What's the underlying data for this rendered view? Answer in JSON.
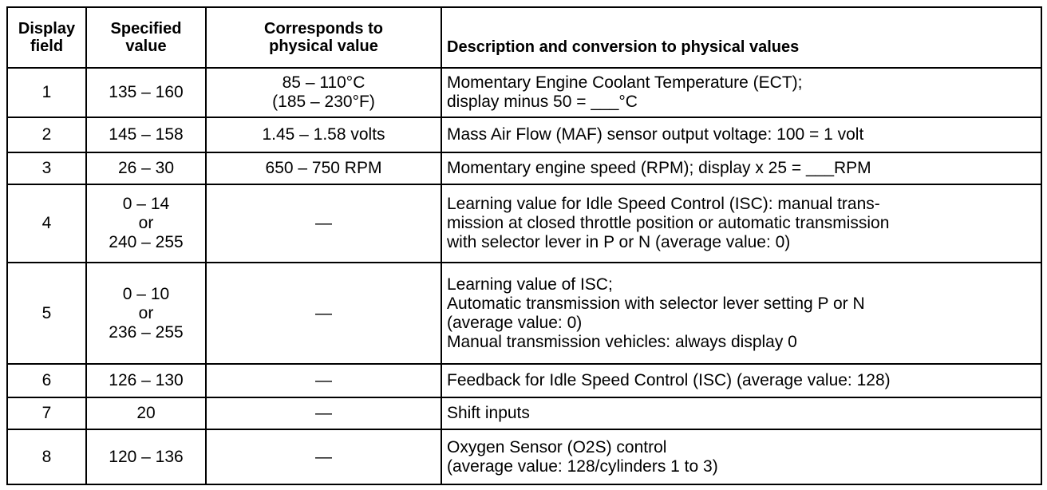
{
  "table": {
    "header": [
      [
        "Display",
        "field"
      ],
      [
        "Specified",
        "value"
      ],
      [
        "Corresponds to",
        "physical value"
      ],
      [
        "Description and conversion to physical values"
      ]
    ],
    "rows": [
      [
        [
          "1"
        ],
        [
          "135 – 160"
        ],
        [
          "85 – 110°C",
          "(185 – 230°F)"
        ],
        [
          "Momentary Engine Coolant Temperature (ECT);",
          "display minus 50 = ___°C"
        ]
      ],
      [
        [
          "2"
        ],
        [
          "145 – 158"
        ],
        [
          "1.45 – 1.58 volts"
        ],
        [
          "Mass Air Flow (MAF) sensor output voltage:  100 = 1 volt"
        ]
      ],
      [
        [
          "3"
        ],
        [
          "26 – 30"
        ],
        [
          "650 – 750 RPM"
        ],
        [
          "Momentary engine speed (RPM);  display x 25 = ___RPM"
        ]
      ],
      [
        [
          "4"
        ],
        [
          "0 – 14",
          "or",
          "240 – 255"
        ],
        [
          "—"
        ],
        [
          "Learning value for Idle Speed Control (ISC):  manual trans-",
          "mission at closed throttle position or automatic transmission",
          "with selector lever in P or N (average value: 0)"
        ]
      ],
      [
        [
          "5"
        ],
        [
          "0 – 10",
          "or",
          "236 – 255"
        ],
        [
          "—"
        ],
        [
          "Learning value of ISC;",
          "Automatic transmission with selector lever setting P or N",
          "(average value: 0)",
          "Manual transmission vehicles:  always display 0"
        ]
      ],
      [
        [
          "6"
        ],
        [
          "126 – 130"
        ],
        [
          "—"
        ],
        [
          "Feedback for Idle Speed Control (ISC) (average value: 128)"
        ]
      ],
      [
        [
          "7"
        ],
        [
          "20"
        ],
        [
          "—"
        ],
        [
          "Shift inputs"
        ]
      ],
      [
        [
          "8"
        ],
        [
          "120 – 136"
        ],
        [
          "—"
        ],
        [
          "Oxygen Sensor (O2S) control",
          "(average value: 128/cylinders 1 to 3)"
        ]
      ]
    ]
  }
}
